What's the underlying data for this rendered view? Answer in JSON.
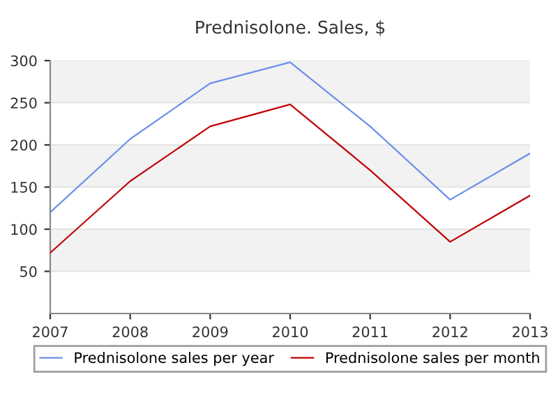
{
  "chart_data": {
    "type": "line",
    "title": "Prednisolone. Sales, $",
    "x": [
      2007,
      2008,
      2009,
      2010,
      2011,
      2012,
      2013
    ],
    "series": [
      {
        "name": "Prednisolone sales per year",
        "color": "#6b8fe8",
        "values": [
          120,
          207,
          273,
          298,
          222,
          135,
          190
        ]
      },
      {
        "name": "Prednisolone sales per month",
        "color": "#c00000",
        "values": [
          72,
          157,
          222,
          248,
          170,
          85,
          140
        ]
      }
    ],
    "xlim": [
      2007,
      2013
    ],
    "xticks": [
      2007,
      2008,
      2009,
      2010,
      2011,
      2012,
      2013
    ],
    "ylim": [
      0,
      300
    ],
    "yticks": [
      50,
      100,
      150,
      200,
      250,
      300
    ],
    "bands": [
      {
        "axis": "y",
        "from": 50,
        "to": 100,
        "color": "#f2f2f2"
      },
      {
        "axis": "y",
        "from": 150,
        "to": 200,
        "color": "#f2f2f2"
      },
      {
        "axis": "y",
        "from": 250,
        "to": 300,
        "color": "#f2f2f2"
      }
    ],
    "grid": "y",
    "legend": "bottom",
    "marker": "none",
    "line_style": "solid"
  }
}
